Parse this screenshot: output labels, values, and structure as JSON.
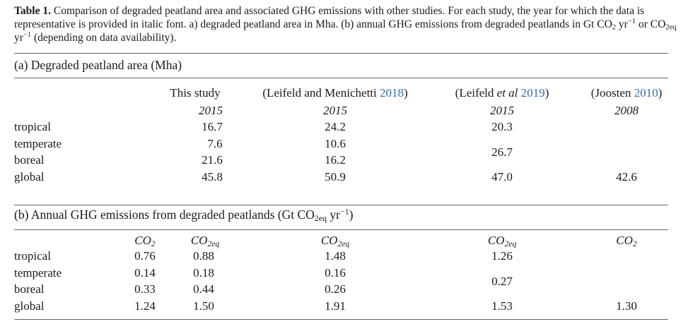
{
  "caption": {
    "label": "Table 1.",
    "text_1": "Comparison of degraded peatland area and associated GHG emissions with other studies. For each study, the year for which the data is representative is provided in italic font. a) degraded peatland area in Mha. (b) annual GHG emissions from degraded peatlands in Gt CO",
    "sub_1": "2",
    "text_2": " yr",
    "sup_1": "−1",
    "text_3": " or CO",
    "sub_2": "2eq",
    "text_4": " yr",
    "sup_2": "−1",
    "text_5": " (depending on data availability)."
  },
  "section_a": {
    "title": "(a) Degraded peatland area (Mha)",
    "headers": {
      "this_study": "This study",
      "leifeld2018_pre": "(Leifeld and Menichetti ",
      "leifeld2018_year": "2018",
      "leifeld2018_post": ")",
      "leifeld2019_pre": "(Leifeld ",
      "leifeld2019_etal": "et al",
      "leifeld2019_mid": " ",
      "leifeld2019_year": "2019",
      "leifeld2019_post": ")",
      "joosten_pre": "(Joosten ",
      "joosten_year": "2010",
      "joosten_post": ")"
    },
    "years": [
      "2015",
      "2015",
      "2015",
      "2008"
    ],
    "rows": [
      {
        "label": "tropical",
        "this_study": "16.7",
        "leifeld2018": "24.2",
        "leifeld2019": "20.3",
        "joosten": ""
      },
      {
        "label": "temperate",
        "this_study": "7.6",
        "leifeld2018": "10.6"
      },
      {
        "label": "boreal",
        "this_study": "21.6",
        "leifeld2018": "16.2"
      },
      {
        "label": "global",
        "this_study": "45.8",
        "leifeld2018": "50.9",
        "leifeld2019": "47.0",
        "joosten": "42.6"
      }
    ],
    "merged_temperate_boreal_leifeld2019": "26.7"
  },
  "section_b": {
    "title_1": "(b) Annual GHG emissions from degraded peatlands (Gt CO",
    "title_sub": "2eq",
    "title_2": " yr",
    "title_sup": "−1",
    "title_3": ")",
    "headers": {
      "co2": "CO",
      "co2_sub": "2",
      "co2eq": "CO",
      "co2eq_sub": "2eq"
    },
    "rows": [
      {
        "label": "tropical",
        "co2": "0.76",
        "co2eq": "0.88",
        "leifeld2018": "1.48",
        "leifeld2019": "1.26",
        "joosten": ""
      },
      {
        "label": "temperate",
        "co2": "0.14",
        "co2eq": "0.18",
        "leifeld2018": "0.16"
      },
      {
        "label": "boreal",
        "co2": "0.33",
        "co2eq": "0.44",
        "leifeld2018": "0.26"
      },
      {
        "label": "global",
        "co2": "1.24",
        "co2eq": "1.50",
        "leifeld2018": "1.91",
        "leifeld2019": "1.53",
        "joosten": "1.30"
      }
    ],
    "merged_temperate_boreal_leifeld2019": "0.27"
  }
}
